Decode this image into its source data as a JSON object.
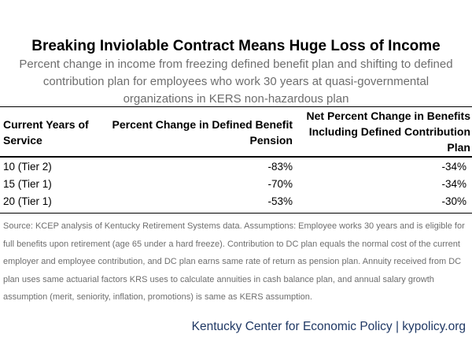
{
  "title": "Breaking Inviolable Contract Means Huge Loss of Income",
  "subtitle": "Percent change in income from freezing defined benefit plan and shifting to defined contribution plan for employees who work 30 years at quasi-governmental organizations in KERS non-hazardous plan",
  "chart_data": {
    "type": "table",
    "columns": [
      "Current Years of Service",
      "Percent Change in Defined Benefit Pension",
      "Net Percent Change in Benefits Including Defined Contribution Plan"
    ],
    "rows": [
      [
        "10 (Tier 2)",
        "-83%",
        "-34%"
      ],
      [
        "15 (Tier 1)",
        "-70%",
        "-34%"
      ],
      [
        "20 (Tier 1)",
        "-53%",
        "-30%"
      ]
    ]
  },
  "source": "Source: KCEP analysis of Kentucky Retirement Systems data. Assumptions: Employee works 30 years and is eligible for full benefits upon retirement (age 65 under a hard freeze). Contribution to DC plan equals the normal cost of the current employer and employee contribution, and DC plan earns same rate of return as pension plan. Annuity received from DC plan uses same actuarial factors KRS uses to calculate annuities in cash balance plan, and annual salary growth assumption (merit, seniority, inflation, promotions) is same as KERS assumption.",
  "footer": "Kentucky Center for Economic Policy | kypolicy.org",
  "colors": {
    "subtitle_text": "#6e6e6e",
    "footer_text": "#1f3864"
  }
}
